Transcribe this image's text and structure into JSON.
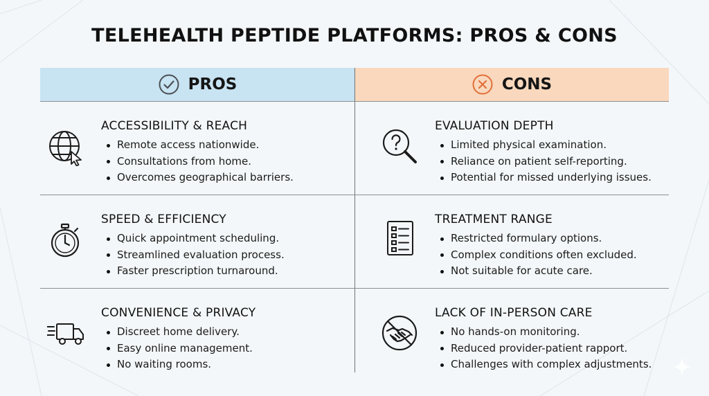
{
  "title": "TELEHEALTH PEPTIDE PLATFORMS: PROS & CONS",
  "pros_header": {
    "label": "PROS",
    "icon": "check-circle-icon",
    "bg": "#c8e3f2"
  },
  "cons_header": {
    "label": "CONS",
    "icon": "x-circle-icon",
    "bg": "#f9d8bd",
    "icon_color": "#e2703a"
  },
  "pros": [
    {
      "title": "ACCESSIBILITY & REACH",
      "icon": "globe-cursor-icon",
      "items": [
        "Remote access nationwide.",
        "Consultations from home.",
        "Overcomes geographical barriers."
      ]
    },
    {
      "title": "SPEED & EFFICIENCY",
      "icon": "stopwatch-icon",
      "items": [
        "Quick appointment scheduling.",
        "Streamlined evaluation process.",
        "Faster prescription turnaround."
      ]
    },
    {
      "title": "CONVENIENCE & PRIVACY",
      "icon": "delivery-truck-icon",
      "items": [
        "Discreet home delivery.",
        "Easy online management.",
        "No waiting rooms."
      ]
    }
  ],
  "cons": [
    {
      "title": "EVALUATION DEPTH",
      "icon": "magnifier-question-icon",
      "items": [
        "Limited physical examination.",
        "Reliance on patient self-reporting.",
        "Potential for missed underlying issues."
      ]
    },
    {
      "title": "TREATMENT RANGE",
      "icon": "checklist-icon",
      "items": [
        "Restricted formulary options.",
        "Complex conditions often excluded.",
        "Not suitable for acute care."
      ]
    },
    {
      "title": "LACK OF IN-PERSON CARE",
      "icon": "no-handshake-icon",
      "items": [
        "No hands-on monitoring.",
        "Reduced provider-patient rapport.",
        "Challenges with complex adjustments."
      ]
    }
  ]
}
